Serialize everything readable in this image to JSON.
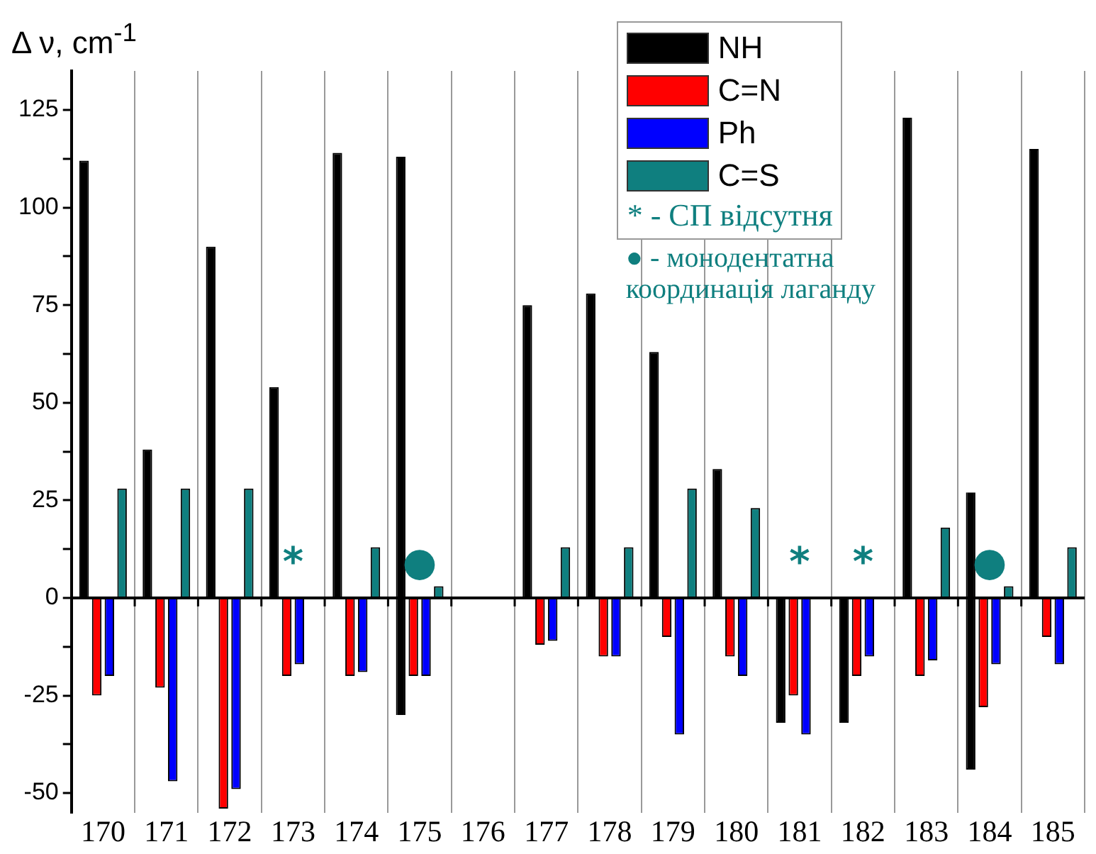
{
  "chart_data": {
    "type": "bar",
    "ylabel": "Δ ν, cm$^{-1}$",
    "categories": [
      "170",
      "171",
      "172",
      "173",
      "174",
      "175",
      "176",
      "177",
      "178",
      "179",
      "180",
      "181",
      "182",
      "183",
      "184",
      "185"
    ],
    "series": [
      {
        "name": "NH",
        "color": "#000000",
        "values": [
          112,
          38,
          90,
          54,
          114,
          143,
          null,
          75,
          78,
          63,
          33,
          -32,
          -32,
          123,
          71,
          115
        ],
        "base": [
          0,
          0,
          0,
          0,
          0,
          -30,
          null,
          0,
          0,
          0,
          0,
          0,
          0,
          0,
          -44,
          0
        ]
      },
      {
        "name": "C=N",
        "color": "#ff0000",
        "values": [
          -25,
          -23,
          -54,
          -20,
          -20,
          -20,
          null,
          -12,
          -15,
          -10,
          -15,
          -25,
          -20,
          -20,
          -28,
          -10
        ]
      },
      {
        "name": "Ph",
        "color": "#0000ff",
        "values": [
          -20,
          -47,
          -49,
          -17,
          -19,
          -20,
          null,
          -11,
          -15,
          -35,
          -20,
          -35,
          -15,
          -16,
          -17,
          -17
        ]
      },
      {
        "name": "C=S",
        "color": "#0f7f7f",
        "values": [
          28,
          28,
          28,
          null,
          13,
          3,
          null,
          13,
          13,
          28,
          23,
          null,
          null,
          18,
          3,
          13
        ]
      }
    ],
    "ylim": [
      -55,
      135
    ],
    "yticks": [
      -50,
      {
        "value": -37.5,
        "label": null
      },
      -25,
      {
        "value": -12.5,
        "label": null
      },
      0,
      {
        "value": 12.5,
        "label": null
      },
      25,
      {
        "value": 37.5,
        "label": null
      },
      50,
      {
        "value": 62.5,
        "label": null
      },
      75,
      {
        "value": 87.5,
        "label": null
      },
      100,
      {
        "value": 112.5,
        "label": null
      },
      125
    ],
    "grid": "x",
    "legend": "top right",
    "annotations": [
      {
        "text": "*",
        "x": "173",
        "y": 0
      },
      {
        "text": "●",
        "x": "175",
        "y": 0
      },
      {
        "text": "*",
        "x": "181",
        "y": 0
      },
      {
        "text": "*",
        "x": "182",
        "y": 0
      },
      {
        "text": "●",
        "x": "184",
        "y": 0
      },
      "* - СП відсутня",
      "● - монодентатна координація лаганду"
    ]
  }
}
